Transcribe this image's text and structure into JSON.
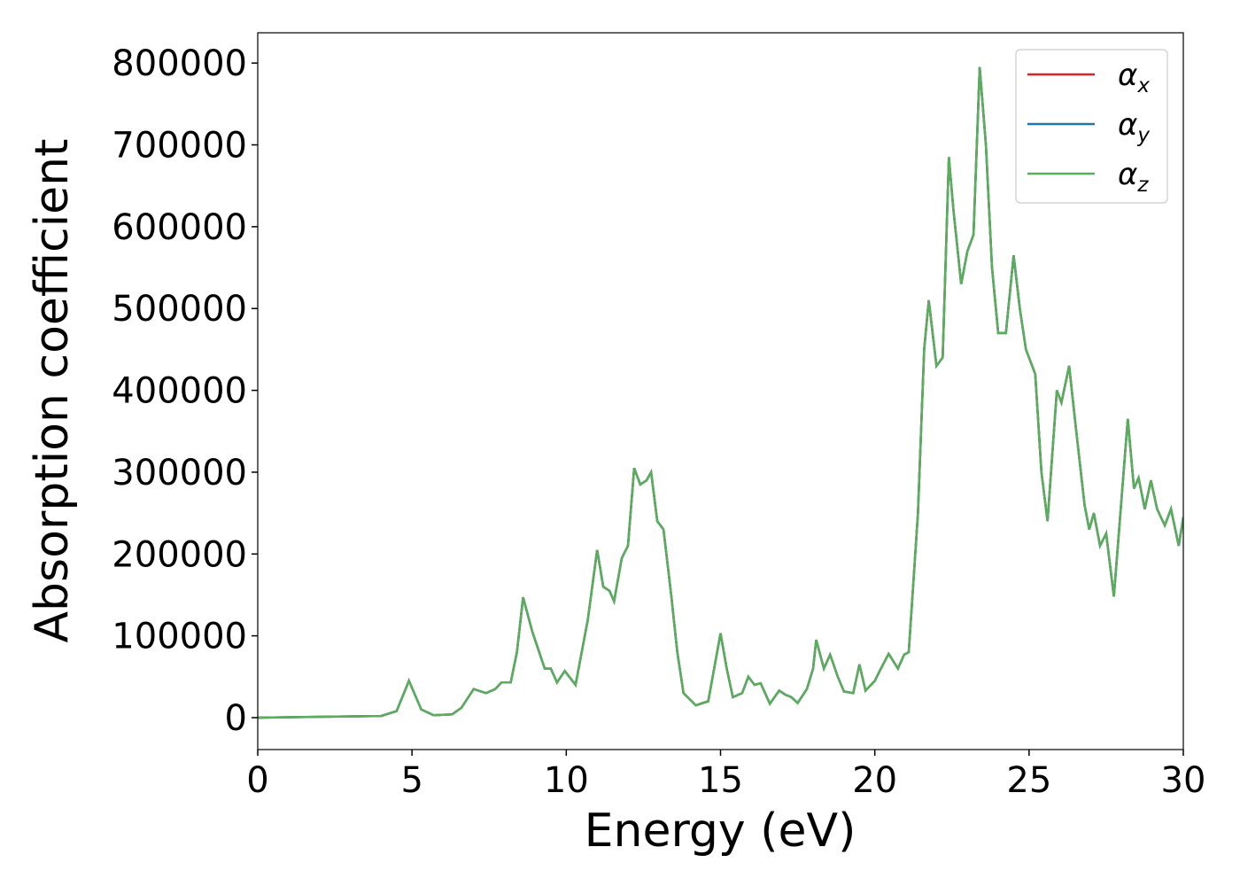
{
  "chart_data": {
    "type": "line",
    "xlabel": "Energy (eV)",
    "ylabel": "Absorption coefficient",
    "xlim": [
      0,
      30
    ],
    "xticks": [
      0,
      5,
      10,
      15,
      20,
      25,
      30
    ],
    "ylim": [
      -39000,
      837000
    ],
    "yticks": [
      0,
      100000,
      200000,
      300000,
      400000,
      500000,
      600000,
      700000,
      800000
    ],
    "legend": "upper right",
    "x": [
      0,
      4,
      4.5,
      4.9,
      5.3,
      5.7,
      6.3,
      6.6,
      7.0,
      7.4,
      7.7,
      7.9,
      8.2,
      8.4,
      8.6,
      8.9,
      9.3,
      9.5,
      9.7,
      9.95,
      10.3,
      10.7,
      11.0,
      11.2,
      11.4,
      11.55,
      11.8,
      12.0,
      12.2,
      12.4,
      12.6,
      12.75,
      12.95,
      13.15,
      13.4,
      13.6,
      13.8,
      14.2,
      14.6,
      15.0,
      15.2,
      15.4,
      15.7,
      15.9,
      16.1,
      16.3,
      16.6,
      16.9,
      17.1,
      17.3,
      17.5,
      17.8,
      18.0,
      18.1,
      18.35,
      18.55,
      18.8,
      19.0,
      19.3,
      19.5,
      19.7,
      20.0,
      20.2,
      20.45,
      20.75,
      20.95,
      21.1,
      21.4,
      21.6,
      21.75,
      22.0,
      22.2,
      22.4,
      22.55,
      22.8,
      23.0,
      23.2,
      23.4,
      23.6,
      23.8,
      24.0,
      24.25,
      24.5,
      24.7,
      24.9,
      25.2,
      25.4,
      25.6,
      25.9,
      26.05,
      26.3,
      26.5,
      26.8,
      26.95,
      27.1,
      27.3,
      27.5,
      27.75,
      28.2,
      28.4,
      28.55,
      28.75,
      28.95,
      29.15,
      29.4,
      29.6,
      29.85,
      30
    ],
    "series": [
      {
        "name": "αx",
        "color": "#d62728",
        "values": [
          0,
          2000,
          8000,
          45000,
          10000,
          3000,
          4000,
          12000,
          35000,
          30000,
          35000,
          43000,
          43000,
          80000,
          147000,
          105000,
          60000,
          60000,
          43000,
          57000,
          40000,
          120000,
          205000,
          160000,
          155000,
          142000,
          195000,
          210000,
          305000,
          285000,
          290000,
          300000,
          240000,
          230000,
          150000,
          80000,
          30000,
          15000,
          20000,
          103000,
          60000,
          25000,
          30000,
          50000,
          40000,
          42000,
          17000,
          33000,
          28000,
          25000,
          18000,
          35000,
          60000,
          95000,
          60000,
          77000,
          50000,
          32000,
          30000,
          65000,
          33000,
          45000,
          60000,
          78000,
          60000,
          77000,
          80000,
          250000,
          450000,
          510000,
          430000,
          440000,
          685000,
          620000,
          530000,
          570000,
          590000,
          795000,
          700000,
          550000,
          470000,
          470000,
          565000,
          500000,
          450000,
          420000,
          300000,
          240000,
          400000,
          385000,
          430000,
          360000,
          260000,
          230000,
          250000,
          210000,
          225000,
          148000,
          365000,
          280000,
          293000,
          255000,
          290000,
          255000,
          235000,
          255000,
          210000,
          245000
        ]
      },
      {
        "name": "αy",
        "color": "#1f77b4",
        "values": [
          0,
          2000,
          8000,
          45000,
          10000,
          3000,
          4000,
          12000,
          35000,
          30000,
          35000,
          43000,
          43000,
          80000,
          147000,
          105000,
          60000,
          60000,
          43000,
          57000,
          40000,
          120000,
          205000,
          160000,
          155000,
          142000,
          195000,
          210000,
          305000,
          285000,
          290000,
          300000,
          240000,
          230000,
          150000,
          80000,
          30000,
          15000,
          20000,
          103000,
          60000,
          25000,
          30000,
          50000,
          40000,
          42000,
          17000,
          33000,
          28000,
          25000,
          18000,
          35000,
          60000,
          95000,
          60000,
          77000,
          50000,
          32000,
          30000,
          65000,
          33000,
          45000,
          60000,
          78000,
          60000,
          77000,
          80000,
          250000,
          450000,
          510000,
          430000,
          440000,
          685000,
          620000,
          530000,
          570000,
          590000,
          795000,
          700000,
          550000,
          470000,
          470000,
          565000,
          500000,
          450000,
          420000,
          300000,
          240000,
          400000,
          385000,
          430000,
          360000,
          260000,
          230000,
          250000,
          210000,
          225000,
          148000,
          365000,
          280000,
          293000,
          255000,
          290000,
          255000,
          235000,
          255000,
          210000,
          245000
        ]
      },
      {
        "name": "αz",
        "color": "#5aad5a",
        "values": [
          0,
          2000,
          8000,
          45000,
          10000,
          3000,
          4000,
          12000,
          35000,
          30000,
          35000,
          43000,
          43000,
          80000,
          147000,
          105000,
          60000,
          60000,
          43000,
          57000,
          40000,
          120000,
          205000,
          160000,
          155000,
          142000,
          195000,
          210000,
          305000,
          285000,
          290000,
          300000,
          240000,
          230000,
          150000,
          80000,
          30000,
          15000,
          20000,
          103000,
          60000,
          25000,
          30000,
          50000,
          40000,
          42000,
          17000,
          33000,
          28000,
          25000,
          18000,
          35000,
          60000,
          95000,
          60000,
          77000,
          50000,
          32000,
          30000,
          65000,
          33000,
          45000,
          60000,
          78000,
          60000,
          77000,
          80000,
          250000,
          450000,
          510000,
          430000,
          440000,
          685000,
          620000,
          530000,
          570000,
          590000,
          795000,
          700000,
          550000,
          470000,
          470000,
          565000,
          500000,
          450000,
          420000,
          300000,
          240000,
          400000,
          385000,
          430000,
          360000,
          260000,
          230000,
          250000,
          210000,
          225000,
          148000,
          365000,
          280000,
          293000,
          255000,
          290000,
          255000,
          235000,
          255000,
          210000,
          245000
        ]
      }
    ]
  }
}
